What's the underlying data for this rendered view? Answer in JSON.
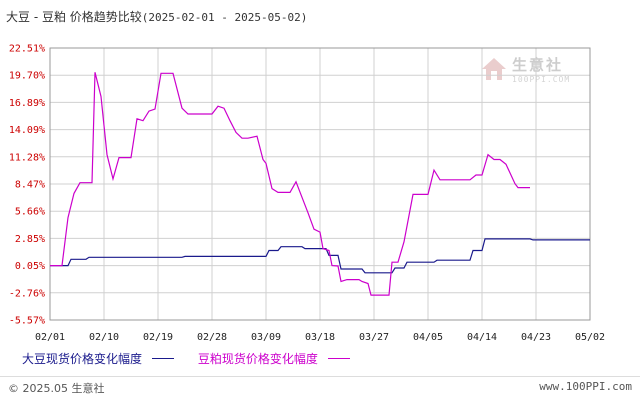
{
  "header": {
    "title": "大豆 - 豆粕 价格趋势比较",
    "date_range": "(2025-02-01 - 2025-05-02)"
  },
  "watermark": {
    "text": "生意社",
    "sub": "100PPI.COM"
  },
  "footer": {
    "copyright": "© 2025.05 生意社",
    "site": "www.100PPI.com"
  },
  "colors": {
    "series_soybean": "#1a1a8c",
    "series_meal": "#cc00cc",
    "grid": "#d0d0d0",
    "tick_y": "#cc0000"
  },
  "chart_data": {
    "type": "line",
    "title": "大豆 - 豆粕 价格趋势比较",
    "xlabel": "",
    "ylabel": "",
    "x_ticks": [
      "02/01",
      "02/10",
      "02/19",
      "02/28",
      "03/09",
      "03/18",
      "03/27",
      "04/05",
      "04/14",
      "04/23",
      "05/02"
    ],
    "y_ticks": [
      "22.51%",
      "19.70%",
      "16.89%",
      "14.09%",
      "11.28%",
      "8.47%",
      "5.66%",
      "2.85%",
      "0.05%",
      "-2.76%",
      "-5.57%"
    ],
    "ylim": [
      -5.57,
      22.51
    ],
    "grid": true,
    "legend_position": "bottom",
    "series": [
      {
        "name": "大豆现货价格变化幅度",
        "points": [
          [
            0,
            0.05
          ],
          [
            3,
            0.05
          ],
          [
            3.5,
            0.7
          ],
          [
            6,
            0.7
          ],
          [
            6.5,
            0.9
          ],
          [
            22,
            0.9
          ],
          [
            22.5,
            1.0
          ],
          [
            36,
            1.0
          ],
          [
            36.5,
            1.6
          ],
          [
            38,
            1.6
          ],
          [
            38.5,
            2.0
          ],
          [
            42,
            2.0
          ],
          [
            42.5,
            1.8
          ],
          [
            46,
            1.8
          ],
          [
            46.5,
            1.1
          ],
          [
            48,
            1.1
          ],
          [
            48.5,
            -0.3
          ],
          [
            52,
            -0.3
          ],
          [
            52.5,
            -0.7
          ],
          [
            57,
            -0.7
          ],
          [
            57.5,
            -0.2
          ],
          [
            59,
            -0.2
          ],
          [
            59.5,
            0.4
          ],
          [
            64,
            0.4
          ],
          [
            64.5,
            0.6
          ],
          [
            70,
            0.6
          ],
          [
            70.5,
            1.6
          ],
          [
            72,
            1.6
          ],
          [
            72.5,
            2.8
          ],
          [
            80,
            2.8
          ],
          [
            80.5,
            2.7
          ],
          [
            90,
            2.7
          ]
        ]
      },
      {
        "name": "豆粕现货价格变化幅度",
        "points": [
          [
            0,
            0.05
          ],
          [
            2,
            0.05
          ],
          [
            3,
            5.0
          ],
          [
            4,
            7.5
          ],
          [
            5,
            8.6
          ],
          [
            6,
            8.6
          ],
          [
            7,
            8.6
          ],
          [
            7.5,
            20.0
          ],
          [
            8.5,
            17.5
          ],
          [
            9.5,
            11.5
          ],
          [
            10.5,
            9.0
          ],
          [
            11.5,
            11.2
          ],
          [
            12.5,
            11.2
          ],
          [
            13.5,
            11.2
          ],
          [
            14.5,
            15.2
          ],
          [
            15.5,
            15.0
          ],
          [
            16.5,
            16.0
          ],
          [
            17.5,
            16.2
          ],
          [
            18.5,
            19.9
          ],
          [
            19.5,
            19.9
          ],
          [
            20.5,
            19.9
          ],
          [
            22,
            16.3
          ],
          [
            23,
            15.7
          ],
          [
            24,
            15.7
          ],
          [
            27,
            15.7
          ],
          [
            28,
            16.5
          ],
          [
            29,
            16.3
          ],
          [
            30,
            15.0
          ],
          [
            31,
            13.8
          ],
          [
            32,
            13.2
          ],
          [
            33,
            13.2
          ],
          [
            34.5,
            13.4
          ],
          [
            35.5,
            11.0
          ],
          [
            36,
            10.6
          ],
          [
            37,
            8.0
          ],
          [
            38,
            7.6
          ],
          [
            39,
            7.6
          ],
          [
            40,
            7.6
          ],
          [
            41,
            8.7
          ],
          [
            42,
            7.1
          ],
          [
            43,
            5.5
          ],
          [
            44,
            3.8
          ],
          [
            45,
            3.5
          ],
          [
            45.5,
            1.8
          ],
          [
            46.5,
            1.6
          ],
          [
            47,
            0.05
          ],
          [
            48,
            0.0
          ],
          [
            48.5,
            -1.6
          ],
          [
            49.5,
            -1.4
          ],
          [
            51.5,
            -1.4
          ],
          [
            52,
            -1.6
          ],
          [
            53,
            -1.8
          ],
          [
            53.5,
            -3.0
          ],
          [
            55,
            -3.0
          ],
          [
            56.5,
            -3.0
          ],
          [
            57,
            0.4
          ],
          [
            58,
            0.4
          ],
          [
            59,
            2.5
          ],
          [
            60.5,
            7.4
          ],
          [
            62.5,
            7.4
          ],
          [
            63,
            7.4
          ],
          [
            64,
            9.9
          ],
          [
            65,
            8.9
          ],
          [
            70,
            8.9
          ],
          [
            71,
            9.4
          ],
          [
            72,
            9.4
          ],
          [
            73,
            11.5
          ],
          [
            74,
            11.0
          ],
          [
            75,
            11.0
          ],
          [
            76,
            10.5
          ],
          [
            77.5,
            8.5
          ],
          [
            78,
            8.1
          ],
          [
            80,
            8.1
          ]
        ]
      }
    ]
  }
}
